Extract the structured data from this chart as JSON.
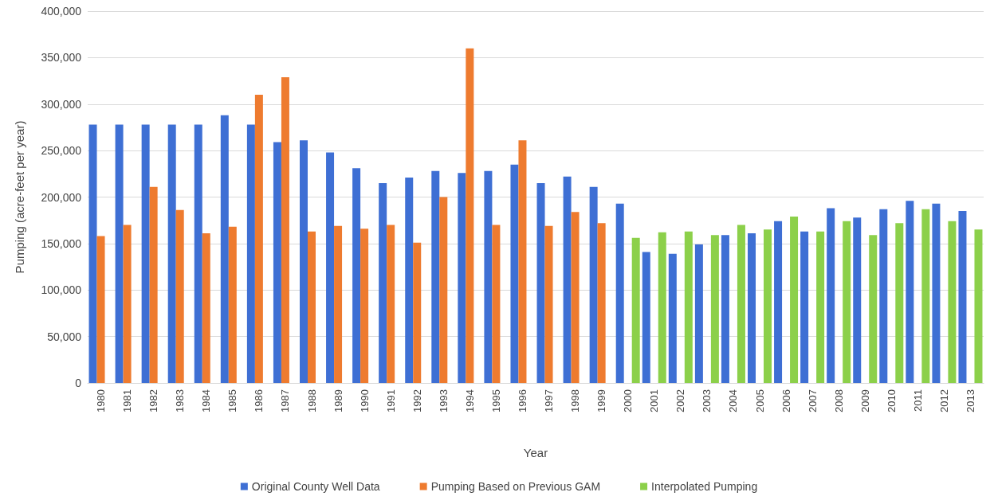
{
  "chart_data": {
    "type": "bar",
    "xlabel": "Year",
    "ylabel": "Pumping (acre-feet per year)",
    "categories": [
      "1980",
      "1981",
      "1982",
      "1983",
      "1984",
      "1985",
      "1986",
      "1987",
      "1988",
      "1989",
      "1990",
      "1991",
      "1992",
      "1993",
      "1994",
      "1995",
      "1996",
      "1997",
      "1998",
      "1999",
      "2000",
      "2001",
      "2002",
      "2003",
      "2004",
      "2005",
      "2006",
      "2007",
      "2008",
      "2009",
      "2010",
      "2011",
      "2012",
      "2013"
    ],
    "series": [
      {
        "name": "Original County Well Data",
        "color": "#3e6fd4",
        "values": [
          278000,
          278000,
          278000,
          278000,
          278000,
          288000,
          278000,
          259000,
          261000,
          248000,
          231000,
          215000,
          221000,
          228000,
          226000,
          228000,
          235000,
          215000,
          222000,
          211000,
          193000,
          141000,
          139000,
          149000,
          159000,
          161000,
          174000,
          163000,
          188000,
          178000,
          187000,
          196000,
          193000,
          185000
        ]
      },
      {
        "name": "Pumping Based on Previous GAM",
        "color": "#ee7b2f",
        "values": [
          158000,
          170000,
          211000,
          186000,
          161000,
          168000,
          310000,
          329000,
          163000,
          169000,
          166000,
          170000,
          151000,
          200000,
          360000,
          170000,
          261000,
          169000,
          184000,
          172000,
          null,
          null,
          null,
          null,
          null,
          null,
          null,
          null,
          null,
          null,
          null,
          null,
          null,
          null
        ]
      },
      {
        "name": "Interpolated Pumping",
        "color": "#8cd04a",
        "values": [
          null,
          null,
          null,
          null,
          null,
          null,
          null,
          null,
          null,
          null,
          null,
          null,
          null,
          null,
          null,
          null,
          null,
          null,
          null,
          null,
          156000,
          162000,
          163000,
          159000,
          170000,
          165000,
          179000,
          163000,
          174000,
          159000,
          172000,
          187000,
          174000,
          165000
        ]
      }
    ],
    "ylim": [
      0,
      400000
    ],
    "yticks": [
      0,
      {
        "value": 50000,
        "label": "50,000"
      },
      {
        "value": 100000,
        "label": "100,000"
      },
      {
        "value": 150000,
        "label": "150,000"
      },
      {
        "value": 200000,
        "label": "200,000"
      },
      {
        "value": 250000,
        "label": "250,000"
      },
      {
        "value": 300000,
        "label": "300,000"
      },
      {
        "value": 350000,
        "label": "350,000"
      },
      {
        "value": 400000,
        "label": "400,000"
      }
    ],
    "grid": "y",
    "legend": "bottom"
  }
}
